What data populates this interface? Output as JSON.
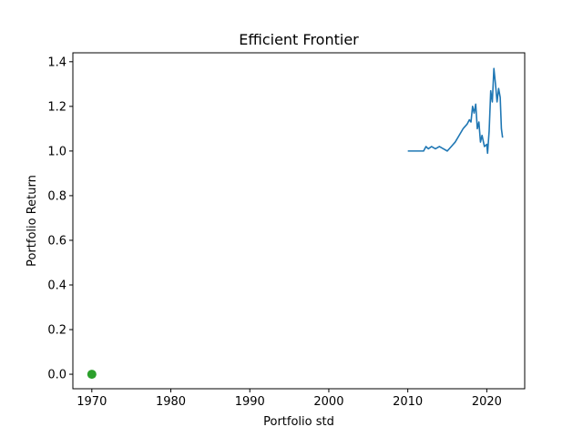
{
  "chart_data": {
    "type": "line",
    "title": "Efficient Frontier",
    "xlabel": "Portfolio std",
    "ylabel": "Portfolio Return",
    "xlim": [
      1967.6,
      2024.8
    ],
    "ylim": [
      -0.065,
      1.44
    ],
    "xticks": [
      1970,
      1980,
      1990,
      2000,
      2010,
      2020
    ],
    "yticks": [
      0.0,
      0.2,
      0.4,
      0.6,
      0.8,
      1.0,
      1.2,
      1.4
    ],
    "xtick_labels": [
      "1970",
      "1980",
      "1990",
      "2000",
      "2010",
      "2020"
    ],
    "ytick_labels": [
      "0.0",
      "0.2",
      "0.4",
      "0.6",
      "0.8",
      "1.0",
      "1.2",
      "1.4"
    ],
    "grid": false,
    "series": [
      {
        "type": "line",
        "color": "#1f77b4",
        "points": [
          [
            2010.0,
            1.0
          ],
          [
            2012.0,
            1.0
          ],
          [
            2012.3,
            1.02
          ],
          [
            2012.6,
            1.01
          ],
          [
            2013.0,
            1.02
          ],
          [
            2013.5,
            1.01
          ],
          [
            2014.0,
            1.02
          ],
          [
            2014.5,
            1.01
          ],
          [
            2015.0,
            1.0
          ],
          [
            2015.5,
            1.02
          ],
          [
            2016.0,
            1.04
          ],
          [
            2016.5,
            1.07
          ],
          [
            2017.0,
            1.1
          ],
          [
            2017.5,
            1.12
          ],
          [
            2017.8,
            1.14
          ],
          [
            2018.0,
            1.13
          ],
          [
            2018.2,
            1.2
          ],
          [
            2018.4,
            1.17
          ],
          [
            2018.6,
            1.21
          ],
          [
            2018.8,
            1.1
          ],
          [
            2019.0,
            1.13
          ],
          [
            2019.2,
            1.04
          ],
          [
            2019.4,
            1.07
          ],
          [
            2019.7,
            1.02
          ],
          [
            2020.0,
            1.03
          ],
          [
            2020.1,
            0.99
          ],
          [
            2020.3,
            1.09
          ],
          [
            2020.5,
            1.27
          ],
          [
            2020.7,
            1.22
          ],
          [
            2020.9,
            1.37
          ],
          [
            2021.1,
            1.3
          ],
          [
            2021.3,
            1.22
          ],
          [
            2021.5,
            1.28
          ],
          [
            2021.7,
            1.24
          ],
          [
            2021.85,
            1.1
          ],
          [
            2022.0,
            1.06
          ]
        ]
      },
      {
        "type": "scatter",
        "color": "#2ca02c",
        "points": [
          [
            1970.0,
            0.0
          ]
        ]
      }
    ]
  }
}
